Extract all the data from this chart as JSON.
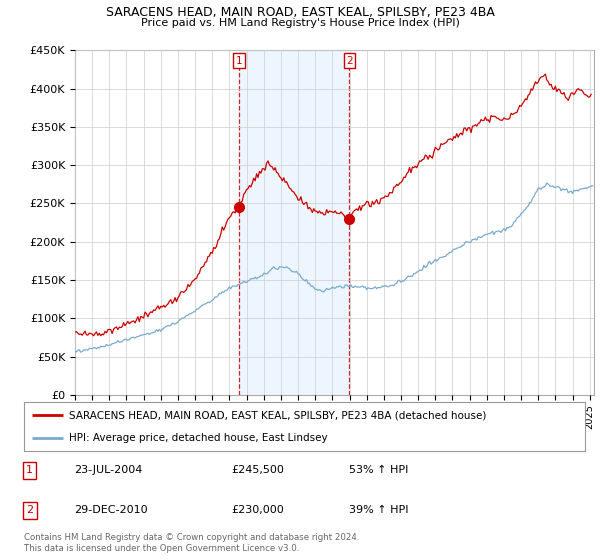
{
  "title1": "SARACENS HEAD, MAIN ROAD, EAST KEAL, SPILSBY, PE23 4BA",
  "title2": "Price paid vs. HM Land Registry's House Price Index (HPI)",
  "ylim": [
    0,
    450000
  ],
  "yticks": [
    0,
    50000,
    100000,
    150000,
    200000,
    250000,
    300000,
    350000,
    400000,
    450000
  ],
  "ytick_labels": [
    "£0",
    "£50K",
    "£100K",
    "£150K",
    "£200K",
    "£250K",
    "£300K",
    "£350K",
    "£400K",
    "£450K"
  ],
  "background_color": "#ffffff",
  "plot_bg_color": "#ffffff",
  "grid_color": "#cccccc",
  "transaction1": {
    "date": "23-JUL-2004",
    "price": 245500,
    "label": "1",
    "pct": "53%",
    "dir": "↑"
  },
  "transaction2": {
    "date": "29-DEC-2010",
    "price": 230000,
    "label": "2",
    "pct": "39%",
    "dir": "↑"
  },
  "legend_line1": "SARACENS HEAD, MAIN ROAD, EAST KEAL, SPILSBY, PE23 4BA (detached house)",
  "legend_line2": "HPI: Average price, detached house, East Lindsey",
  "footer": "Contains HM Land Registry data © Crown copyright and database right 2024.\nThis data is licensed under the Open Government Licence v3.0.",
  "red_color": "#cc0000",
  "blue_color": "#7aaacf",
  "span_color": "#ddeeff",
  "trans1_x": 2004.556,
  "trans2_x": 2010.997,
  "trans1_y": 245500,
  "trans2_y": 230000,
  "xlim_start": 1995.0,
  "xlim_end": 2025.25
}
